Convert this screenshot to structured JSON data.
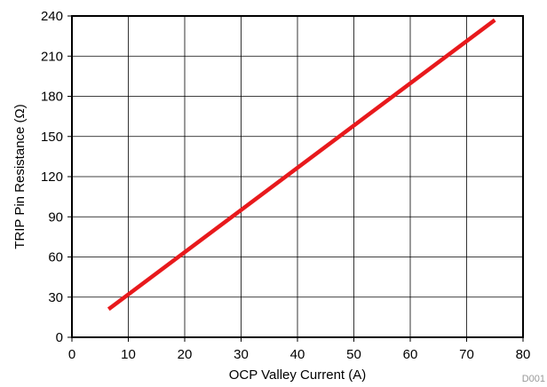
{
  "chart_data": {
    "type": "line",
    "xlabel": "OCP Valley Current (A)",
    "ylabel": "TRIP Pin Resistance (Ω)",
    "xlim": [
      0,
      80
    ],
    "ylim": [
      0,
      240
    ],
    "xticks": [
      0,
      10,
      20,
      30,
      40,
      50,
      60,
      70,
      80
    ],
    "yticks": [
      0,
      30,
      60,
      90,
      120,
      150,
      180,
      210,
      240
    ],
    "grid": true,
    "series": [
      {
        "x": [
          6.5,
          75
        ],
        "y": [
          21,
          237
        ],
        "color": "#e8191c"
      }
    ],
    "source_label": "D001"
  }
}
